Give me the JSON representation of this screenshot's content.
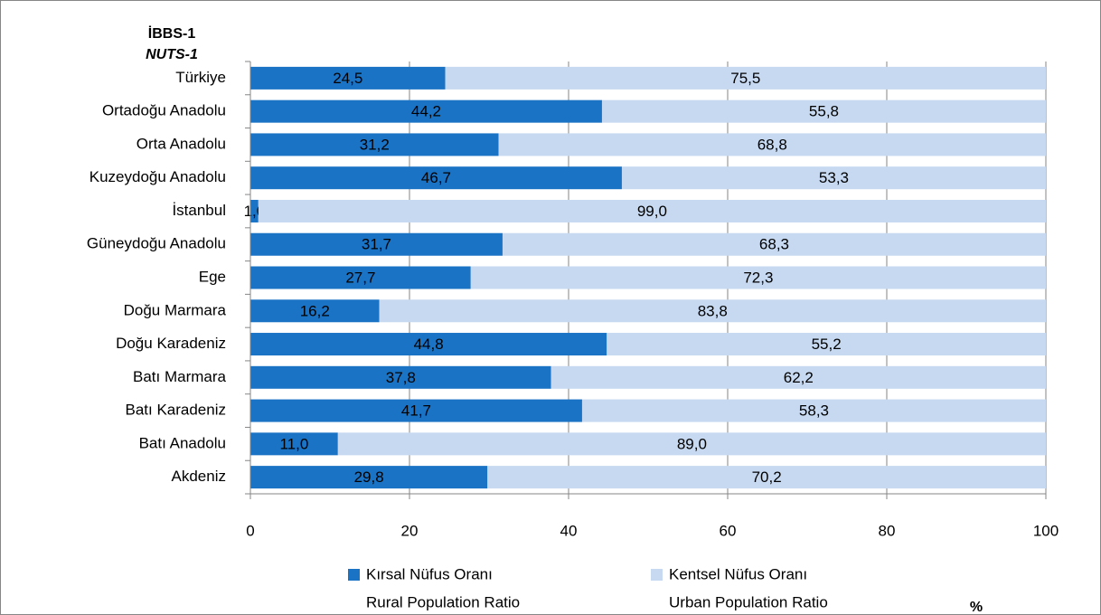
{
  "chart_data": {
    "type": "stacked_barh",
    "y_label": "İBBS-1",
    "y_label_en": "NUTS-1",
    "x_label": "%",
    "categories": [
      "Türkiye",
      "Ortadoğu Anadolu",
      "Orta Anadolu",
      "Kuzeydoğu Anadolu",
      "İstanbul",
      "Güneydoğu Anadolu",
      "Ege",
      "Doğu Marmara",
      "Doğu Karadeniz",
      "Batı Marmara",
      "Batı Karadeniz",
      "Batı Anadolu",
      "Akdeniz"
    ],
    "series": [
      {
        "name": "Kırsal Nüfus Oranı",
        "name_en": "Rural Population Ratio",
        "color": "#1a73c4",
        "label_color": "#ffffff",
        "values": [
          24.5,
          44.2,
          31.2,
          46.7,
          1.0,
          31.7,
          27.7,
          16.2,
          44.8,
          37.8,
          41.7,
          11.0,
          29.8
        ],
        "value_labels": [
          "24,5",
          "44,2",
          "31,2",
          "46,7",
          "1,0",
          "31,7",
          "27,7",
          "16,2",
          "44,8",
          "37,8",
          "41,7",
          "11,0",
          "29,8"
        ]
      },
      {
        "name": "Kentsel Nüfus Oranı",
        "name_en": "Urban Population Ratio",
        "color": "#c6d9f1",
        "label_color": "#000000",
        "values": [
          75.5,
          55.8,
          68.8,
          53.3,
          99.0,
          68.3,
          72.3,
          83.8,
          55.2,
          62.2,
          58.3,
          89.0,
          70.2
        ],
        "value_labels": [
          "75,5",
          "55,8",
          "68,8",
          "53,3",
          "99,0",
          "68,3",
          "72,3",
          "83,8",
          "55,2",
          "62,2",
          "58,3",
          "89,0",
          "70,2"
        ]
      }
    ],
    "xlim": [
      0,
      100
    ],
    "xticks": [
      0,
      20,
      40,
      60,
      80,
      100
    ],
    "grid": true
  }
}
